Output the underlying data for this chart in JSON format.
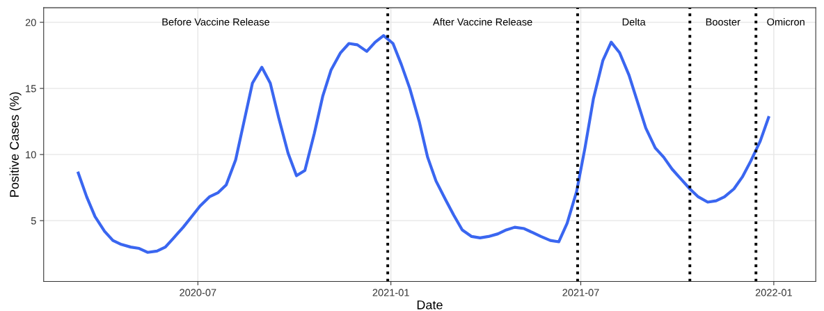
{
  "chart_data": {
    "type": "line",
    "xlabel": "Date",
    "ylabel": "Positive Cases (%)",
    "x": [
      "2020-03-09",
      "2020-03-17",
      "2020-03-25",
      "2020-04-03",
      "2020-04-11",
      "2020-04-19",
      "2020-04-28",
      "2020-05-06",
      "2020-05-14",
      "2020-05-23",
      "2020-05-31",
      "2020-06-08",
      "2020-06-17",
      "2020-06-25",
      "2020-07-03",
      "2020-07-12",
      "2020-07-20",
      "2020-07-28",
      "2020-08-06",
      "2020-08-14",
      "2020-08-22",
      "2020-08-31",
      "2020-09-08",
      "2020-09-16",
      "2020-09-25",
      "2020-10-03",
      "2020-10-11",
      "2020-10-20",
      "2020-10-28",
      "2020-11-05",
      "2020-11-14",
      "2020-11-22",
      "2020-11-30",
      "2020-12-09",
      "2020-12-17",
      "2020-12-25",
      "2021-01-03",
      "2021-01-11",
      "2021-01-19",
      "2021-01-28",
      "2021-02-05",
      "2021-02-13",
      "2021-02-22",
      "2021-03-02",
      "2021-03-10",
      "2021-03-19",
      "2021-03-27",
      "2021-04-04",
      "2021-04-13",
      "2021-04-21",
      "2021-04-29",
      "2021-05-08",
      "2021-05-16",
      "2021-05-24",
      "2021-06-02",
      "2021-06-10",
      "2021-06-18",
      "2021-06-27",
      "2021-07-05",
      "2021-07-13",
      "2021-07-22",
      "2021-07-30",
      "2021-08-07",
      "2021-08-16",
      "2021-08-24",
      "2021-09-01",
      "2021-09-10",
      "2021-09-18",
      "2021-09-26",
      "2021-10-05",
      "2021-10-13",
      "2021-10-21",
      "2021-10-30",
      "2021-11-07",
      "2021-11-15",
      "2021-11-24",
      "2021-12-02",
      "2021-12-10",
      "2021-12-19",
      "2021-12-27"
    ],
    "series": [
      {
        "color": "#3a66f0",
        "values": [
          8.6,
          6.8,
          5.3,
          4.2,
          3.5,
          3.2,
          3.0,
          2.9,
          2.6,
          2.7,
          3.0,
          3.7,
          4.5,
          5.3,
          6.1,
          6.8,
          7.1,
          7.7,
          9.6,
          12.5,
          15.4,
          16.6,
          15.4,
          12.8,
          10.1,
          8.4,
          8.8,
          11.6,
          14.4,
          16.4,
          17.7,
          18.4,
          18.3,
          17.8,
          18.5,
          19.0,
          18.4,
          16.8,
          15.0,
          12.5,
          9.8,
          8.0,
          6.6,
          5.4,
          4.3,
          3.8,
          3.7,
          3.8,
          4.0,
          4.3,
          4.5,
          4.4,
          4.1,
          3.8,
          3.5,
          3.4,
          4.8,
          7.2,
          10.5,
          14.2,
          17.1,
          18.5,
          17.7,
          16.0,
          14.0,
          12.0,
          10.5,
          9.8,
          8.9,
          8.1,
          7.4,
          6.8,
          6.4,
          6.5,
          6.8,
          7.4,
          8.3,
          9.5,
          11.0,
          12.8
        ]
      }
    ],
    "xlim": [
      "2020-02-05",
      "2022-02-10"
    ],
    "xticks": [
      {
        "value": "2020-07-01",
        "label": "2020-07"
      },
      {
        "value": "2021-01-01",
        "label": "2021-01"
      },
      {
        "value": "2021-07-01",
        "label": "2021-07"
      },
      {
        "value": "2022-01-01",
        "label": "2022-01"
      }
    ],
    "ylim": [
      0.4,
      21.1
    ],
    "yticks": [
      5,
      10,
      15,
      20
    ],
    "grid": true,
    "line_style": "solid",
    "marker": "none",
    "ref_lines": [
      {
        "axis": "x",
        "value": "2020-12-29",
        "color": "#000000",
        "line_style": "dotted"
      },
      {
        "axis": "x",
        "value": "2021-06-28",
        "color": "#000000",
        "line_style": "dotted"
      },
      {
        "axis": "x",
        "value": "2021-10-13",
        "color": "#000000",
        "line_style": "dotted"
      },
      {
        "axis": "x",
        "value": "2021-12-15",
        "color": "#000000",
        "line_style": "dotted"
      }
    ],
    "annotations": [
      "Before Vaccine Release",
      "After Vaccine Release",
      "Delta",
      "Booster",
      "Omicron"
    ]
  }
}
